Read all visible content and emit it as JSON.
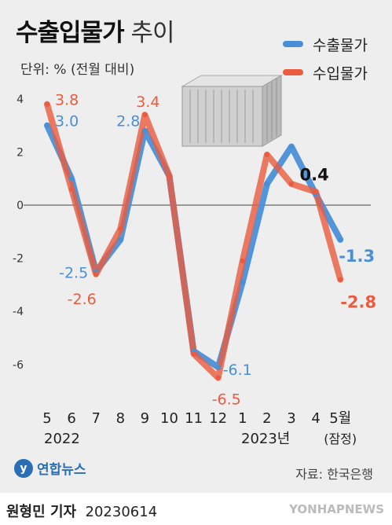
{
  "header": {
    "title_main": "수출입물가",
    "title_sub": "추이",
    "unit": "단위: % (전월 대비)"
  },
  "legend": [
    {
      "label": "수출물가",
      "color": "#4a8fd6"
    },
    {
      "label": "수입물가",
      "color": "#ea5b3f"
    }
  ],
  "year_labels": [
    "2022",
    "2023년"
  ],
  "source": "자료: 한국은행",
  "logo": {
    "mark": "y",
    "text": "연합뉴스"
  },
  "footer": {
    "reporter": "원형민 기자",
    "date": "20230614",
    "agency": "YONHAPNEWS"
  },
  "decoration": {
    "image": "shipping-container-icon"
  },
  "chart_data": {
    "type": "line",
    "categories": [
      "5",
      "6",
      "7",
      "8",
      "9",
      "10",
      "11",
      "12",
      "1",
      "2",
      "3",
      "4",
      "5월\n(잠정)"
    ],
    "ylim": [
      -8,
      4.5
    ],
    "yticks": [
      4,
      2,
      0,
      -2,
      -4,
      -6
    ],
    "grid": false,
    "legend_position": "top-right",
    "series": [
      {
        "name": "수출물가",
        "color": "#4a8fd6",
        "values": [
          3.0,
          1.0,
          -2.5,
          -1.3,
          2.8,
          1.1,
          -5.5,
          -6.1,
          -2.9,
          0.8,
          2.2,
          0.4,
          -1.3
        ],
        "labels": [
          {
            "index": 0,
            "text": "3.0"
          },
          {
            "index": 2,
            "text": "-2.5"
          },
          {
            "index": 4,
            "text": "2.8"
          },
          {
            "index": 7,
            "text": "-6.1"
          },
          {
            "index": 11,
            "text": "0.4"
          },
          {
            "index": 12,
            "text": "-1.3"
          }
        ]
      },
      {
        "name": "수입물가",
        "color": "#ea5b3f",
        "values": [
          3.8,
          0.6,
          -2.6,
          -0.9,
          3.4,
          1.1,
          -5.6,
          -6.5,
          -2.1,
          1.9,
          0.8,
          0.5,
          -2.8
        ],
        "labels": [
          {
            "index": 0,
            "text": "3.8"
          },
          {
            "index": 2,
            "text": "-2.6"
          },
          {
            "index": 4,
            "text": "3.4"
          },
          {
            "index": 7,
            "text": "-6.5"
          },
          {
            "index": 12,
            "text": "-2.8"
          }
        ]
      }
    ]
  }
}
